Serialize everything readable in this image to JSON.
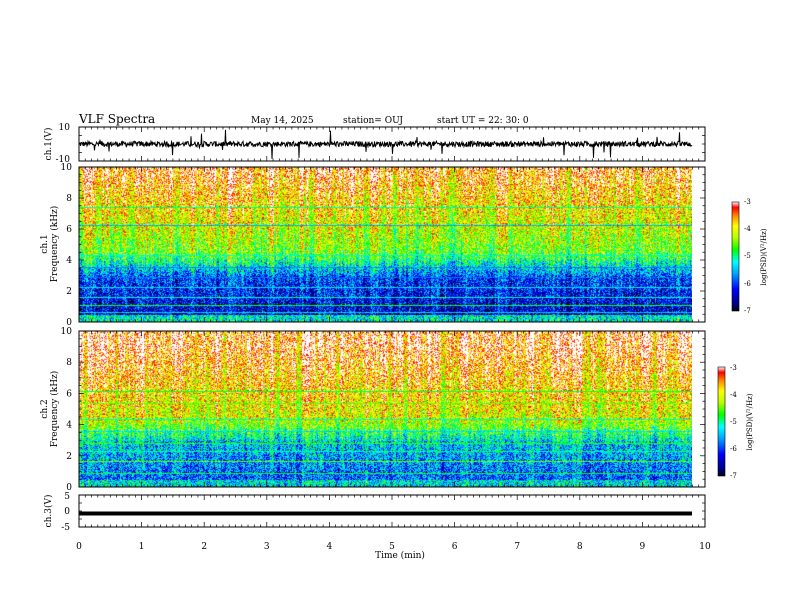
{
  "header": {
    "title": "VLF Spectra",
    "date": "May 14, 2025",
    "station": "station= OUJ",
    "start": "start  UT  =   22: 30: 0"
  },
  "chart_data": [
    {
      "type": "line",
      "panel": "ch1-waveform",
      "ylabel": "ch.1(V)",
      "ylim": [
        -10,
        10
      ],
      "yticks": [
        "10",
        "-10"
      ],
      "xlim": [
        0,
        10
      ],
      "baseline": 0,
      "color": "#000000"
    },
    {
      "type": "heatmap",
      "panel": "ch1-spectrogram",
      "ylabel_top": "ch.1",
      "ylabel": "Frequency (kHz)",
      "ylim": [
        0,
        10
      ],
      "yticks": [
        "0",
        "2",
        "4",
        "6",
        "8",
        "10"
      ],
      "xlim": [
        0,
        9.8
      ],
      "colorbar": {
        "label": "log(PSD)(V²/Hz)",
        "range": [
          -7,
          -3
        ],
        "ticks": [
          "-3",
          "-4",
          "-5",
          "-6",
          "-7"
        ]
      }
    },
    {
      "type": "heatmap",
      "panel": "ch2-spectrogram",
      "ylabel_top": "ch.2",
      "ylabel": "Frequency (kHz)",
      "ylim": [
        0,
        10
      ],
      "yticks": [
        "0",
        "2",
        "4",
        "6",
        "8",
        "10"
      ],
      "xlim": [
        0,
        9.8
      ],
      "colorbar": {
        "label": "log(PSD)(V²/Hz)",
        "range": [
          -7,
          -3
        ],
        "ticks": [
          "-3",
          "-4",
          "-5",
          "-6",
          "-7"
        ]
      }
    },
    {
      "type": "line",
      "panel": "ch3-waveform",
      "ylabel": "ch.3(V)",
      "ylim": [
        -5,
        5
      ],
      "yticks": [
        "5",
        "0",
        "-5"
      ],
      "xlim": [
        0,
        10
      ],
      "constant_value": -0.8,
      "color": "#000000"
    }
  ],
  "xaxis": {
    "label": "Time (min)",
    "range": [
      0,
      10
    ],
    "ticks": [
      "0",
      "1",
      "2",
      "3",
      "4",
      "5",
      "6",
      "7",
      "8",
      "9",
      "10"
    ]
  }
}
